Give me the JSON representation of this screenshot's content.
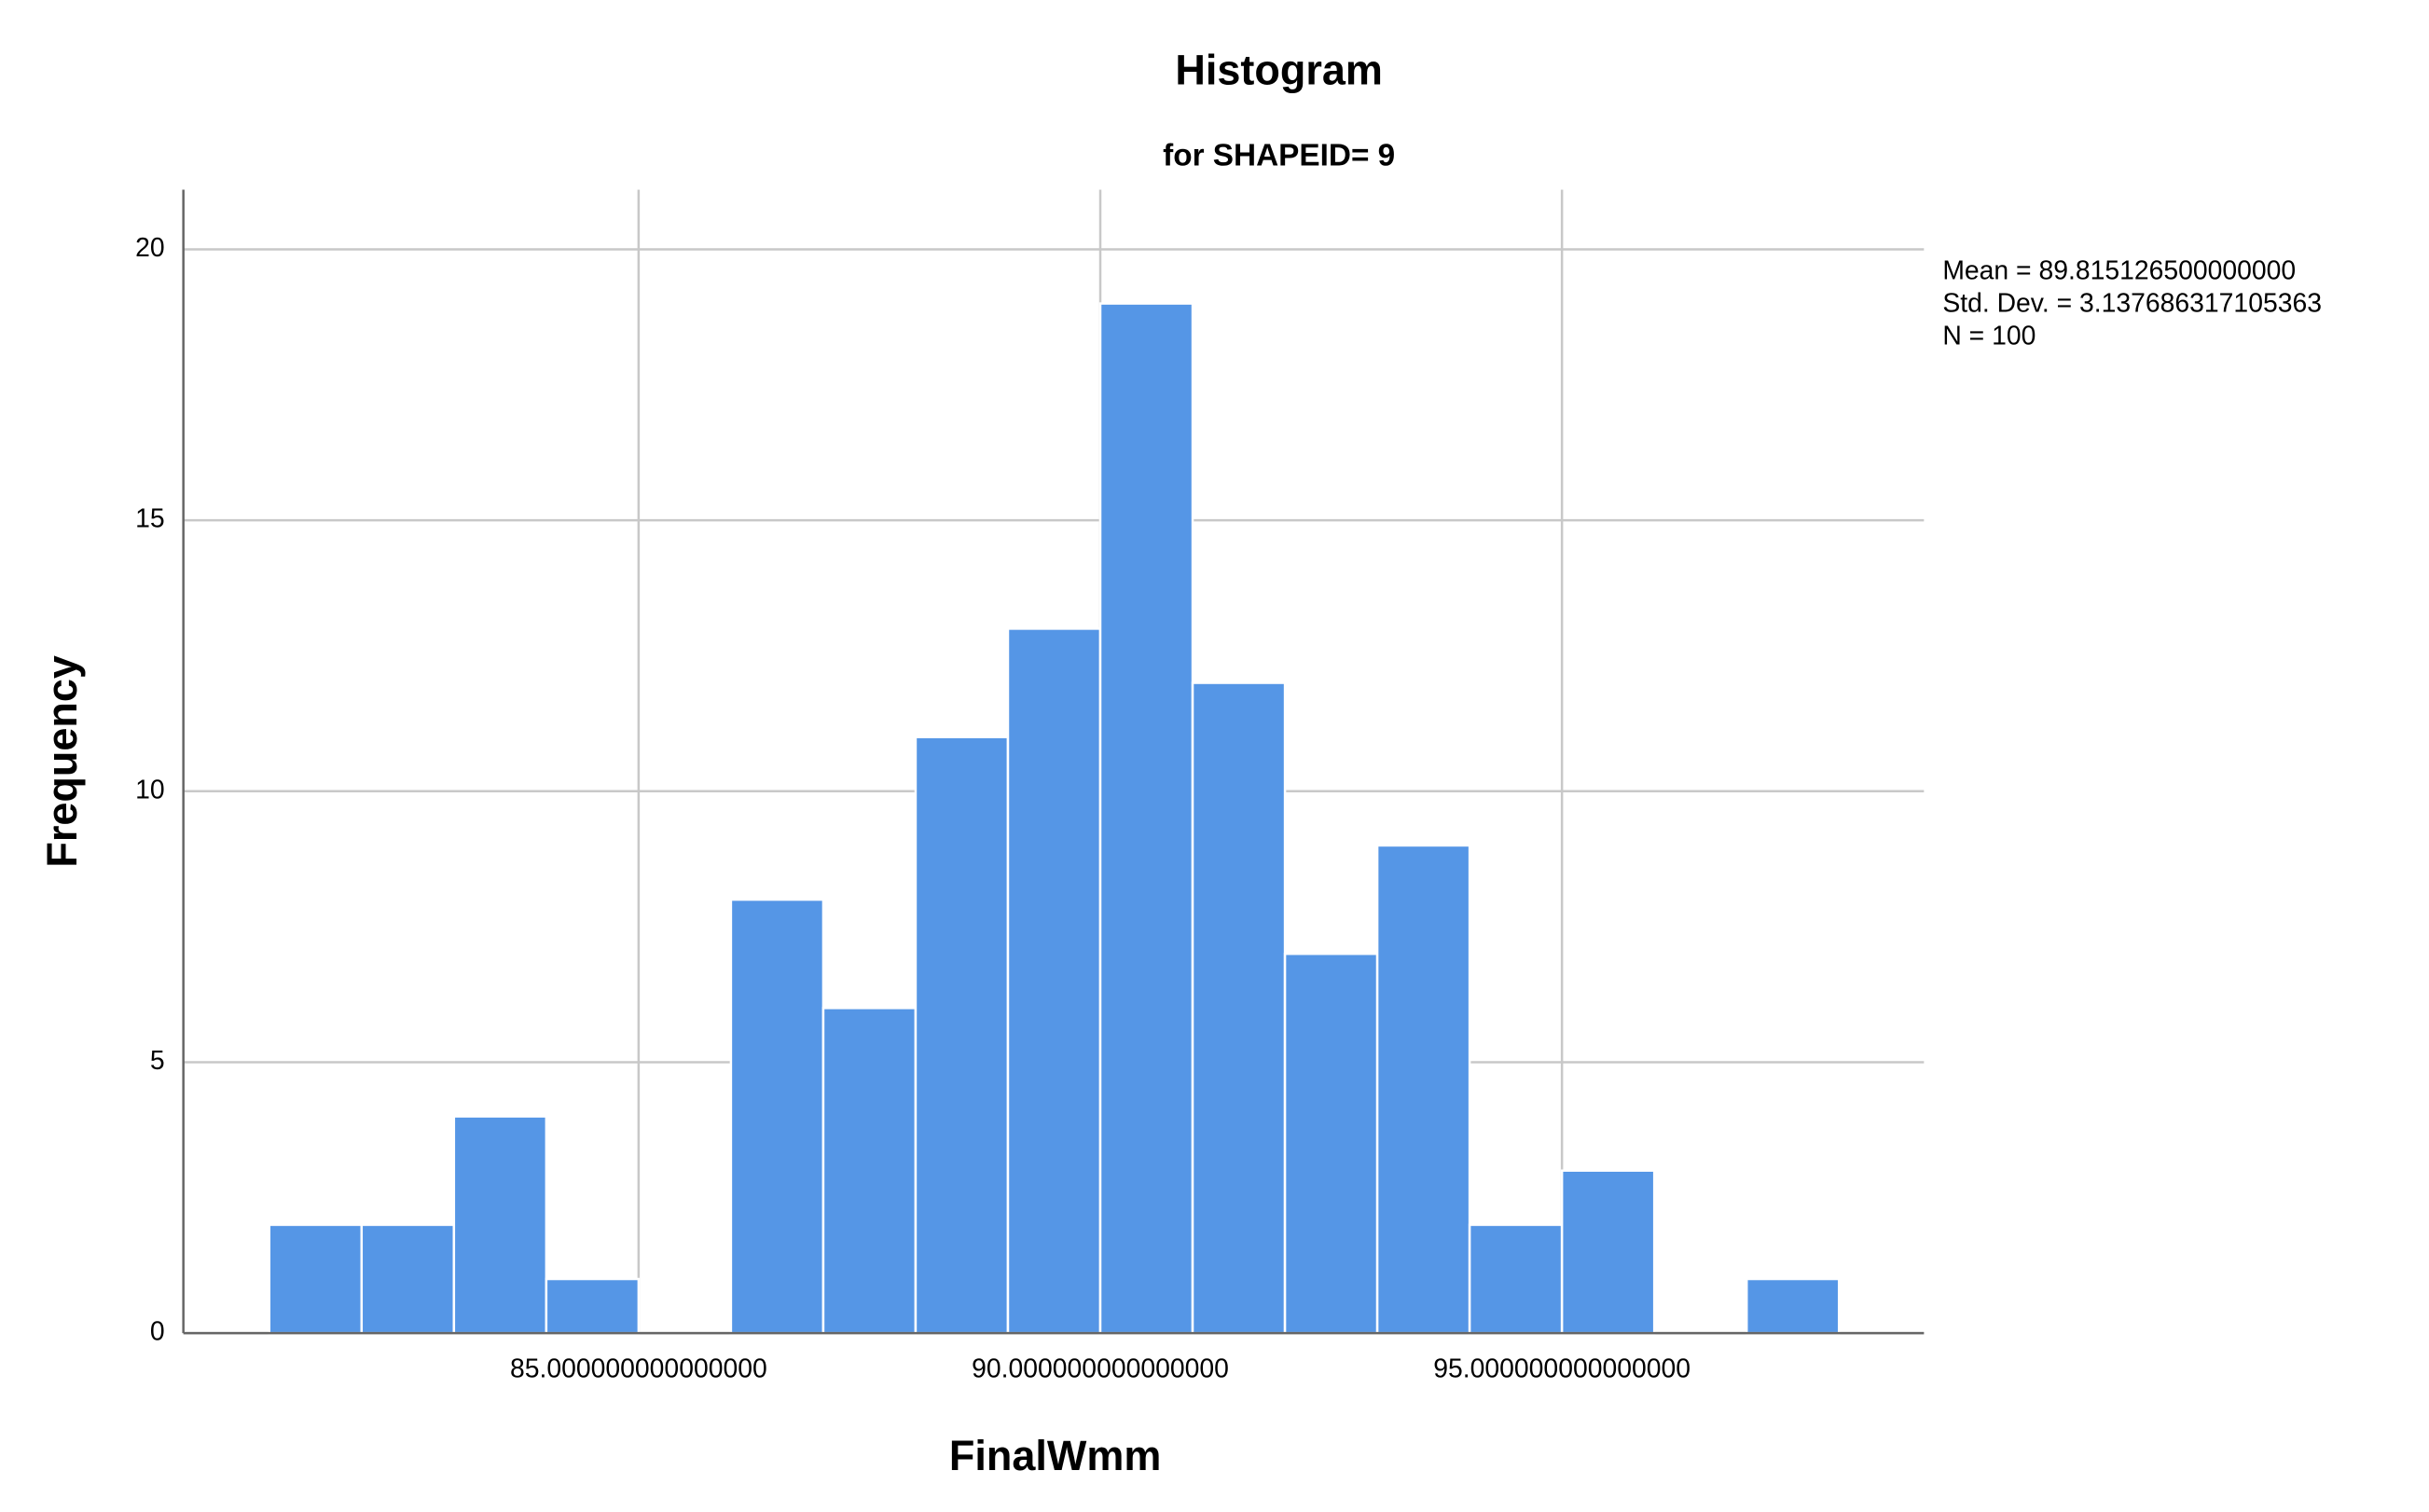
{
  "chart_data": {
    "type": "histogram",
    "title": "Histogram",
    "subtitle": "for SHAPEID= 9",
    "x_label": "FinalWmm",
    "y_label": "Frequency",
    "bins": [
      81,
      82,
      83,
      84,
      85,
      86,
      87,
      88,
      89,
      90,
      91,
      92,
      93,
      94,
      95,
      96,
      97,
      98
    ],
    "values": [
      2,
      2,
      4,
      1,
      0,
      8,
      6,
      11,
      13,
      19,
      12,
      7,
      9,
      2,
      3,
      0,
      1
    ],
    "color": "#5596e6",
    "xlim": [
      80.07,
      98.92
    ],
    "xticks": [
      {
        "value": 85,
        "label": "85.000000000000000"
      },
      {
        "value": 90,
        "label": "90.000000000000000"
      },
      {
        "value": 95,
        "label": "95.000000000000000"
      }
    ],
    "ylim": [
      0,
      21.1
    ],
    "yticks": [
      0,
      5,
      10,
      15,
      20
    ],
    "grid": true,
    "stats": [
      "Mean = 89.815126500000000",
      "Std. Dev. = 3.137686317105363",
      "N = 100"
    ]
  }
}
